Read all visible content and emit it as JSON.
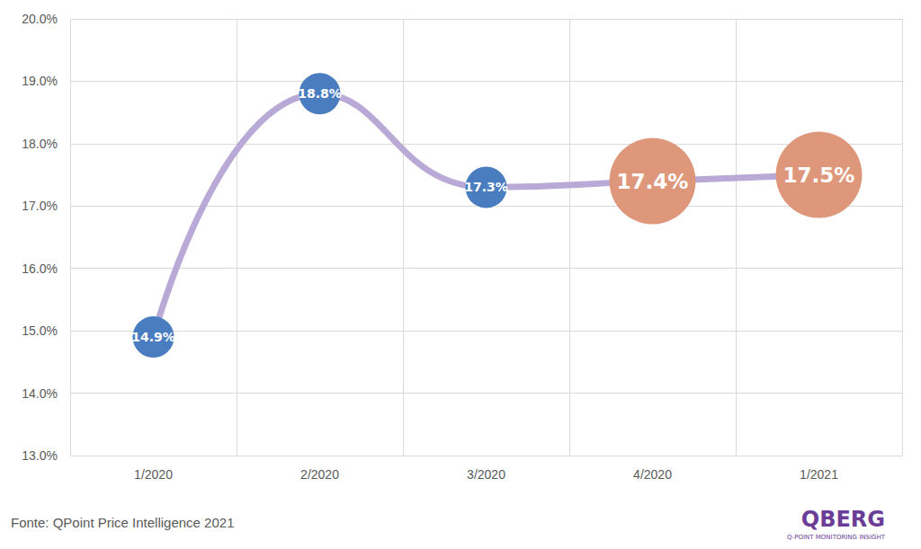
{
  "chart_data": {
    "type": "line",
    "categories": [
      "1/2020",
      "2/2020",
      "3/2020",
      "4/2020",
      "1/2021"
    ],
    "values": [
      14.9,
      18.8,
      17.3,
      17.4,
      17.5
    ],
    "value_labels": [
      "14.9%",
      "18.8%",
      "17.3%",
      "17.4%",
      "17.5%"
    ],
    "data_labels": true,
    "color": "#b8a9d6",
    "colors": [
      "#4a7dbf",
      "#4a7dbf",
      "#4a7dbf",
      "#de977a",
      "#de977a"
    ],
    "ylim": [
      13,
      20
    ],
    "yticks": [
      {
        "value": 13,
        "label": "13.0%"
      },
      {
        "value": 14,
        "label": "14.0%"
      },
      {
        "value": 15,
        "label": "15.0%"
      },
      {
        "value": 16,
        "label": "16.0%"
      },
      {
        "value": 17,
        "label": "17.0%"
      },
      {
        "value": 18,
        "label": "18.0%"
      },
      {
        "value": 19,
        "label": "19.0%"
      },
      {
        "value": 20,
        "label": "20.0%"
      }
    ],
    "grid": true,
    "annotations": [
      "Fonte: QPoint Price Intelligence 2021",
      "QBERG",
      "Q-POINT MONITORING INSIGHT"
    ]
  }
}
